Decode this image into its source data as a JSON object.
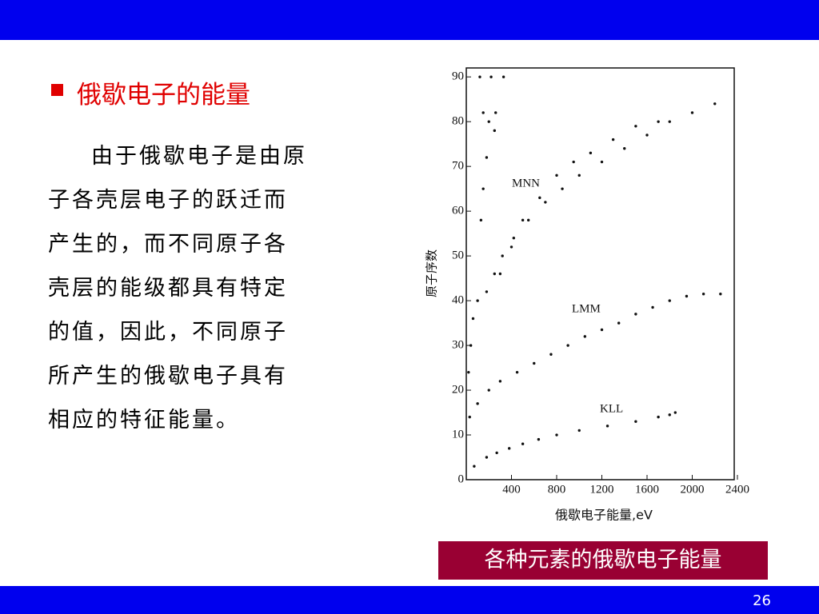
{
  "header": {
    "title": "俄歇电子的能量"
  },
  "body": {
    "lines": [
      "由于俄歇电子是由原",
      "子各壳层电子的跃迁而",
      "产生的，而不同原子各",
      "壳层的能级都具有特定",
      "的值，因此，不同原子",
      "所产生的俄歇电子具有",
      "相应的特征能量。"
    ]
  },
  "chart_data": {
    "type": "scatter",
    "x_label": "俄歇电子能量,eV",
    "y_label": "原子序数",
    "color": "#111111",
    "xlim": [
      0,
      2400
    ],
    "ylim": [
      0,
      92
    ],
    "xticks": [
      400,
      800,
      1200,
      1600,
      2000,
      2400
    ],
    "yticks": [
      0,
      10,
      20,
      30,
      40,
      50,
      60,
      70,
      80,
      90
    ],
    "series": [
      {
        "name": "KLL",
        "x": [
          70,
          180,
          270,
          380,
          500,
          640,
          800,
          1000,
          1250,
          1500,
          1700,
          1800,
          1850
        ],
        "values": [
          3,
          5,
          6,
          7,
          8,
          9,
          10,
          11,
          12,
          13,
          14,
          14.5,
          15
        ]
      },
      {
        "name": "LMM",
        "x": [
          30,
          100,
          200,
          300,
          450,
          600,
          750,
          900,
          1050,
          1200,
          1350,
          1500,
          1650,
          1800,
          1950,
          2100,
          2250
        ],
        "values": [
          14,
          17,
          20,
          22,
          24,
          26,
          28,
          30,
          32,
          33.5,
          35,
          37,
          38.5,
          40,
          41,
          41.5,
          41.5
        ]
      },
      {
        "name": "MNN",
        "x": [
          20,
          40,
          60,
          100,
          180,
          250,
          320,
          420,
          550,
          700,
          850,
          1000,
          1200,
          1400,
          1600,
          1800,
          2000,
          2200,
          300,
          400,
          500,
          650,
          800,
          950,
          1100,
          1300,
          1500,
          1700,
          130,
          150,
          180,
          200,
          150,
          260,
          250,
          120,
          220,
          330
        ],
        "values": [
          24,
          30,
          36,
          40,
          42,
          46,
          50,
          54,
          58,
          62,
          65,
          68,
          71,
          74,
          77,
          80,
          82,
          84,
          46,
          52,
          58,
          63,
          68,
          71,
          73,
          76,
          79,
          80,
          58,
          65,
          72,
          80,
          82,
          82,
          78,
          90,
          90,
          90
        ]
      }
    ]
  },
  "caption": "各种元素的俄歇电子能量",
  "footer": {
    "page": "26"
  }
}
